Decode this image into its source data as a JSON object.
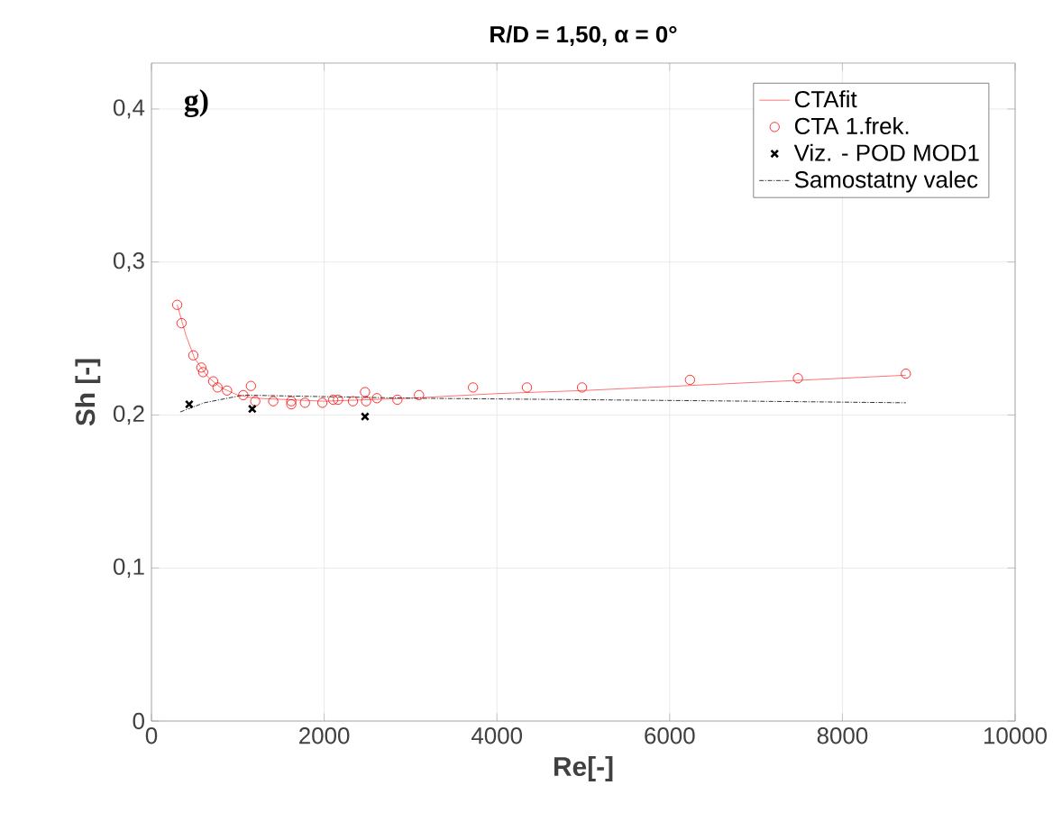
{
  "chart_data": {
    "type": "scatter",
    "title": "R/D = 1,50, α = 0°",
    "xlabel": "Re[-]",
    "ylabel": "Sh [-]",
    "annotations": [
      "**g)**"
    ],
    "xlim": [
      0,
      10000
    ],
    "ylim": [
      0,
      0.43
    ],
    "xticks": [
      0,
      2000,
      4000,
      6000,
      8000,
      10000
    ],
    "yticks": [
      {
        "value": 0,
        "label": "0"
      },
      {
        "value": 0.1,
        "label": "0,1"
      },
      {
        "value": 0.2,
        "label": "0,2"
      },
      {
        "value": 0.3,
        "label": "0,3"
      },
      {
        "value": 0.4,
        "label": "0,4"
      }
    ],
    "grid": true,
    "legend": "top right",
    "series": [
      {
        "name": "CTAfit",
        "type": "line",
        "color": "#ff5050",
        "marker": "none",
        "line_style": "solid",
        "x": [
          298,
          400,
          500,
          650,
          800,
          1000,
          1200,
          1600,
          2000,
          3000,
          4000,
          5000,
          6500,
          8735
        ],
        "values": [
          0.272,
          0.252,
          0.237,
          0.225,
          0.218,
          0.213,
          0.211,
          0.21,
          0.209,
          0.211,
          0.214,
          0.216,
          0.22,
          0.226
        ]
      },
      {
        "name": "CTA 1.frek.",
        "color": "#ff0000",
        "marker": "circle",
        "x": [
          298,
          348,
          485,
          577,
          598,
          715,
          765,
          875,
          1063,
          1152,
          1202,
          1410,
          1619,
          1619,
          1777,
          1979,
          2104,
          2160,
          2333,
          2473,
          2485,
          2610,
          2848,
          3098,
          3723,
          4348,
          4985,
          6235,
          7485,
          8735
        ],
        "values": [
          0.272,
          0.26,
          0.239,
          0.231,
          0.228,
          0.222,
          0.218,
          0.216,
          0.213,
          0.219,
          0.209,
          0.209,
          0.209,
          0.207,
          0.208,
          0.208,
          0.21,
          0.21,
          0.209,
          0.215,
          0.209,
          0.211,
          0.21,
          0.213,
          0.218,
          0.218,
          0.218,
          0.223,
          0.224,
          0.227
        ]
      },
      {
        "name": "Viz. - POD MOD1",
        "color": "#000000",
        "marker": "cross",
        "x": [
          437,
          1167,
          2473
        ],
        "values": [
          0.207,
          0.204,
          0.199
        ]
      },
      {
        "name": "Samostatny valec",
        "type": "line",
        "color": "#000000",
        "marker": "none",
        "line_style": "dashdot",
        "x": [
          333,
          611,
          1063,
          2000,
          3000,
          5000,
          7000,
          8735
        ],
        "values": [
          0.202,
          0.208,
          0.213,
          0.212,
          0.211,
          0.21,
          0.209,
          0.208
        ]
      }
    ]
  }
}
